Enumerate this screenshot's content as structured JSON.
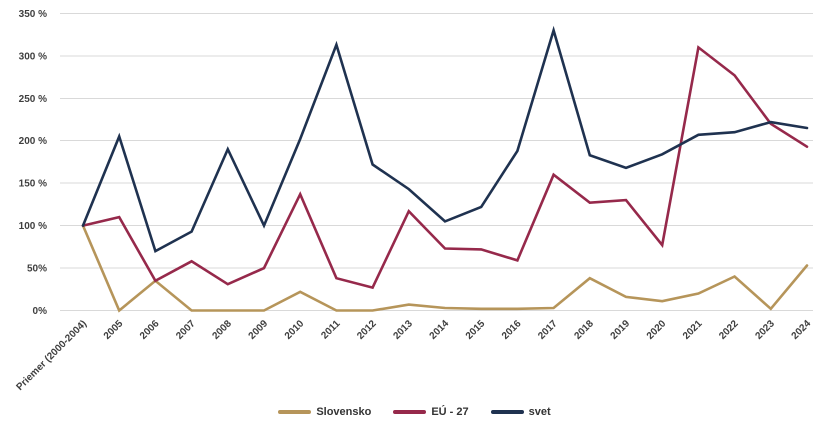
{
  "chart_data": {
    "type": "line",
    "title": "",
    "categories": [
      "Priemer (2000-2004)",
      "2005",
      "2006",
      "2007",
      "2008",
      "2009",
      "2010",
      "2011",
      "2012",
      "2013",
      "2014",
      "2015",
      "2016",
      "2017",
      "2018",
      "2019",
      "2020",
      "2021",
      "2022",
      "2023",
      "2024"
    ],
    "series": [
      {
        "name": "Slovensko",
        "color": "#B6955A",
        "values": [
          100,
          0,
          35,
          0,
          0,
          0,
          22,
          0,
          0,
          7,
          3,
          2,
          2,
          3,
          38,
          16,
          11,
          20,
          40,
          2,
          53
        ]
      },
      {
        "name": "EÚ - 27",
        "color": "#96294B",
        "values": [
          100,
          110,
          35,
          58,
          31,
          50,
          137,
          38,
          27,
          117,
          73,
          72,
          59,
          160,
          127,
          130,
          77,
          310,
          277,
          220,
          193
        ]
      },
      {
        "name": "svet",
        "color": "#1F3250",
        "values": [
          100,
          205,
          70,
          93,
          190,
          100,
          202,
          313,
          172,
          143,
          105,
          122,
          188,
          330,
          183,
          168,
          184,
          207,
          210,
          222,
          215
        ]
      }
    ],
    "ylim": [
      0,
      350
    ],
    "ytick_step": 50,
    "ytick_labels": [
      "0%",
      "50%",
      "100 %",
      "150 %",
      "200 %",
      "250 %",
      "300 %",
      "350 %"
    ],
    "grid": "horizontal-only",
    "gridline_color": "#D9D9D9",
    "axis_label_color": "#3F3F3F",
    "legend_position": "bottom-center",
    "x_label_rotation_deg": -45
  }
}
